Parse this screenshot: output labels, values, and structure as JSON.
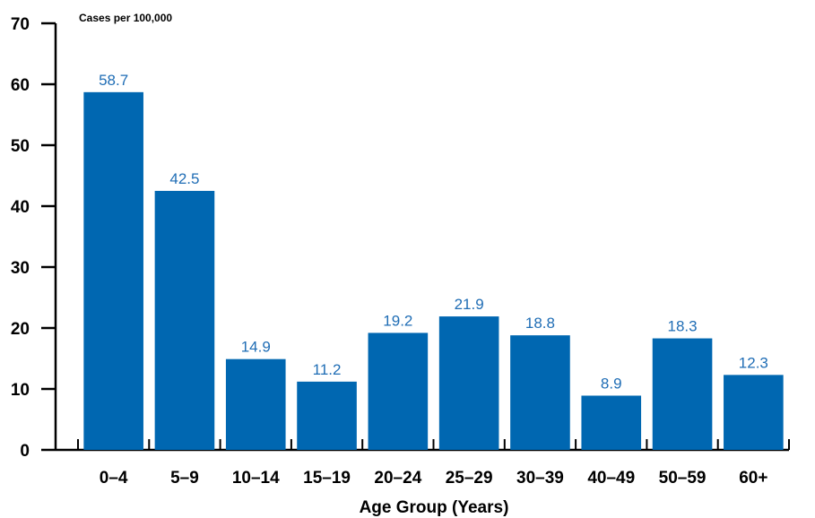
{
  "chart_data": {
    "type": "bar",
    "title": "",
    "unit_label": "Cases per 100,000",
    "xlabel": "Age Group (Years)",
    "ylabel": "",
    "categories": [
      "0–4",
      "5–9",
      "10–14",
      "15–19",
      "20–24",
      "25–29",
      "30–39",
      "40–49",
      "50–59",
      "60+"
    ],
    "values": [
      58.7,
      42.5,
      14.9,
      11.2,
      19.2,
      21.9,
      18.8,
      8.9,
      18.3,
      12.3
    ],
    "value_labels": [
      "58.7",
      "42.5",
      "14.9",
      "11.2",
      "19.2",
      "21.9",
      "18.8",
      "8.9",
      "18.3",
      "12.3"
    ],
    "ylim": [
      0,
      70
    ],
    "yticks": [
      "0",
      "10",
      "20",
      "30",
      "40",
      "50",
      "60",
      "70"
    ],
    "grid": false,
    "legend": "none",
    "bar_color": "#0067b1",
    "label_color": "#1f6db5"
  }
}
